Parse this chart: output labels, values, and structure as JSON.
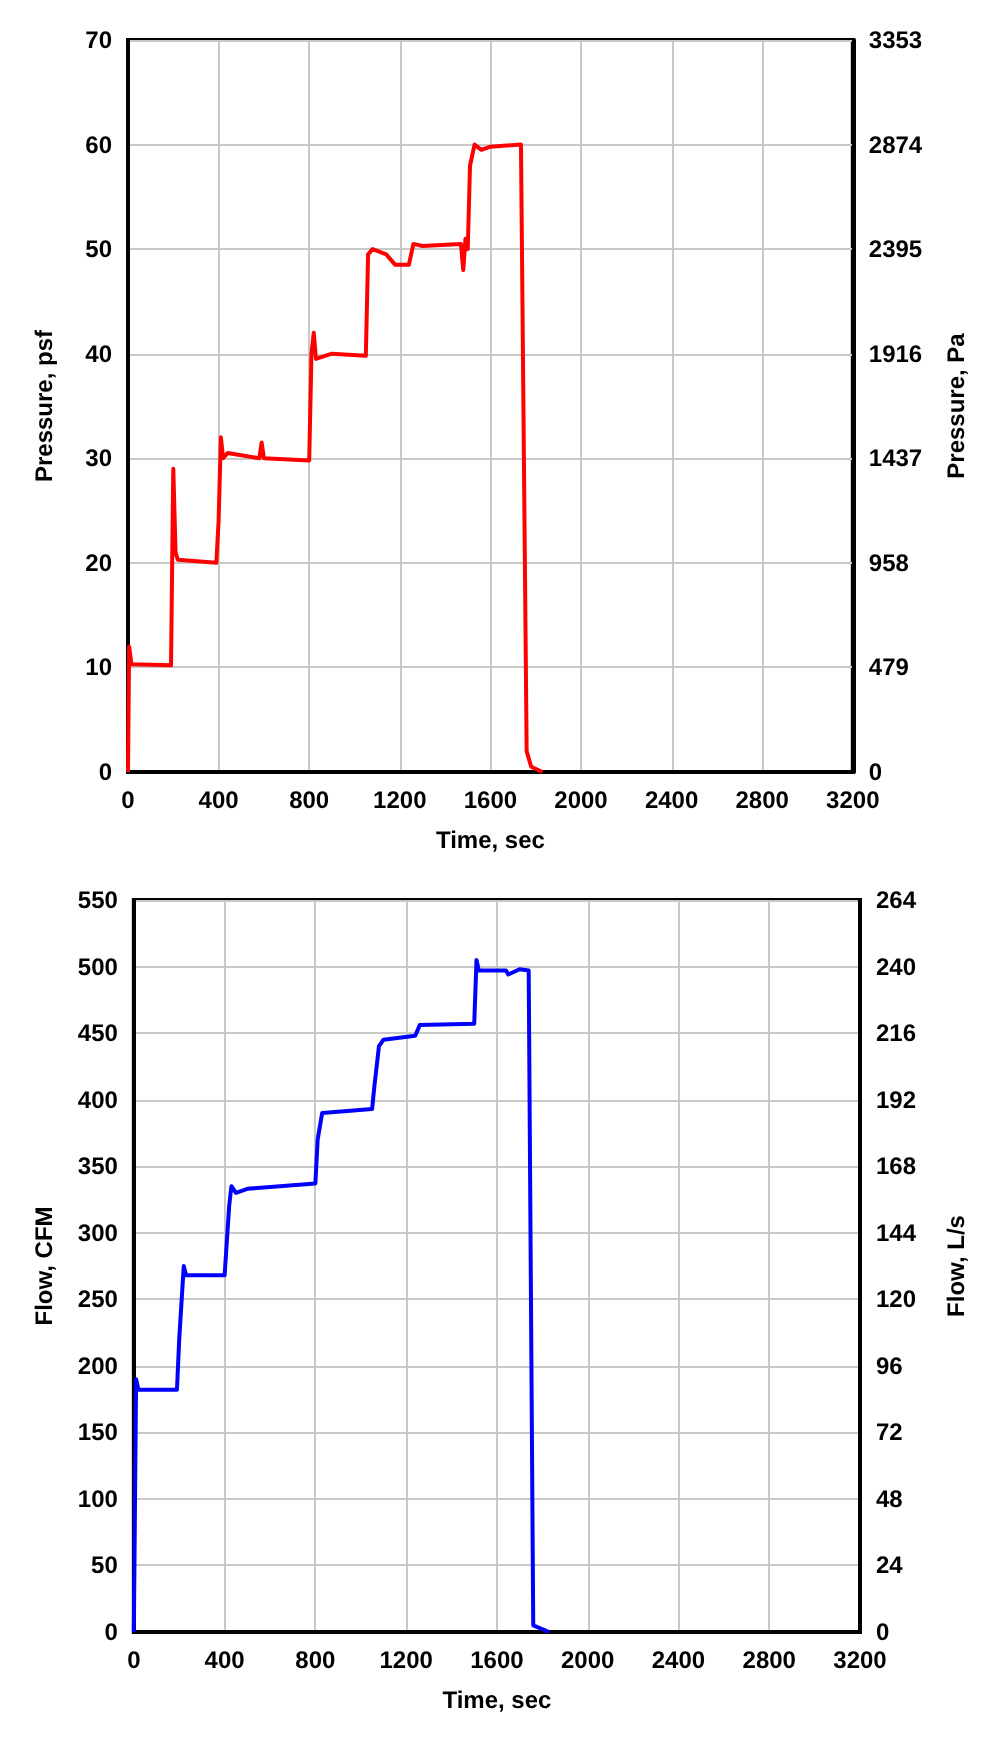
{
  "chart_data": [
    {
      "type": "line",
      "xlabel": "Time, sec",
      "ylabel": "Pressure, psf",
      "y2label": "Pressure, Pa",
      "xlim": [
        0,
        3200
      ],
      "xticks": [
        0,
        400,
        800,
        1200,
        1600,
        2000,
        2400,
        2800,
        3200
      ],
      "ylim": [
        0,
        70
      ],
      "yticks": [
        0,
        10,
        20,
        30,
        40,
        50,
        60,
        70
      ],
      "y2lim": [
        0,
        3353
      ],
      "y2ticks": [
        0,
        479,
        958,
        1437,
        1916,
        2395,
        2874,
        3353
      ],
      "grid": true,
      "line_style": "solid",
      "series": [
        {
          "color": "#ff0000",
          "x": [
            0,
            5,
            15,
            190,
            195,
            200,
            210,
            220,
            390,
            400,
            410,
            420,
            440,
            580,
            590,
            600,
            800,
            810,
            820,
            830,
            900,
            1050,
            1060,
            1080,
            1140,
            1180,
            1240,
            1260,
            1300,
            1470,
            1480,
            1490,
            1500,
            1510,
            1530,
            1560,
            1600,
            1735,
            1760,
            1780,
            1830
          ],
          "values": [
            0,
            12,
            10.3,
            10.2,
            20,
            29,
            21,
            20.3,
            20,
            24,
            32,
            30,
            30.5,
            30,
            31.5,
            30,
            29.8,
            40,
            42,
            39.5,
            40,
            39.8,
            49.5,
            50,
            49.5,
            48.5,
            48.5,
            50.5,
            50.3,
            50.5,
            48,
            51,
            50,
            58,
            60,
            59.5,
            59.8,
            60,
            2,
            0.5,
            0
          ]
        }
      ]
    },
    {
      "type": "line",
      "xlabel": "Time, sec",
      "ylabel": "Flow, CFM",
      "y2label": "Flow, L/s",
      "xlim": [
        0,
        3200
      ],
      "xticks": [
        0,
        400,
        800,
        1200,
        1600,
        2000,
        2400,
        2800,
        3200
      ],
      "ylim": [
        0,
        550
      ],
      "yticks": [
        0,
        50,
        100,
        150,
        200,
        250,
        300,
        350,
        400,
        450,
        500,
        550
      ],
      "y2lim": [
        0,
        264
      ],
      "y2ticks": [
        0,
        24,
        48,
        72,
        96,
        120,
        144,
        168,
        192,
        216,
        240,
        264
      ],
      "grid": true,
      "line_style": "solid",
      "series": [
        {
          "color": "#0000ff",
          "x": [
            0,
            10,
            20,
            190,
            200,
            220,
            230,
            400,
            420,
            430,
            450,
            500,
            800,
            810,
            830,
            1050,
            1060,
            1080,
            1100,
            1240,
            1260,
            1500,
            1510,
            1520,
            1640,
            1650,
            1700,
            1740,
            1760,
            1830
          ],
          "values": [
            0,
            190,
            182,
            182,
            220,
            275,
            268,
            268,
            320,
            335,
            330,
            333,
            337,
            370,
            390,
            393,
            410,
            440,
            445,
            448,
            456,
            457,
            505,
            497,
            497,
            494,
            498,
            497,
            5,
            0
          ]
        }
      ]
    }
  ]
}
